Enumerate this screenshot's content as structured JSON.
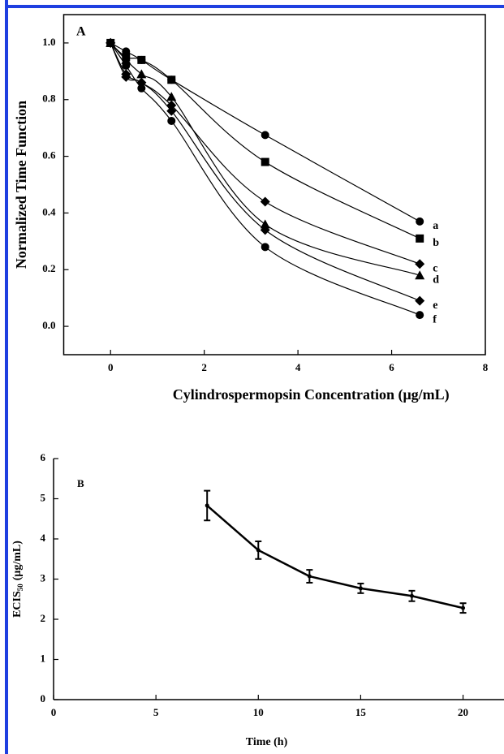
{
  "chart_data": [
    {
      "type": "scatter",
      "annotation": "A",
      "x_label": "Cylindrospermopsin Concentration (μg/mL)",
      "y_label": "Normalized Time Function",
      "x": [
        0,
        0.33,
        0.66,
        1.3,
        3.3,
        6.6
      ],
      "series": [
        {
          "name": "a",
          "color": "#000000",
          "marker": "circle",
          "values": [
            1.0,
            0.97,
            0.94,
            0.87,
            0.675,
            0.37
          ]
        },
        {
          "name": "b",
          "color": "#000000",
          "marker": "square",
          "values": [
            1.0,
            0.95,
            0.94,
            0.87,
            0.58,
            0.31
          ]
        },
        {
          "name": "c",
          "color": "#000000",
          "marker": "diamond",
          "values": [
            1.0,
            0.89,
            0.86,
            0.78,
            0.44,
            0.22
          ]
        },
        {
          "name": "d",
          "color": "#000000",
          "marker": "triangle",
          "values": [
            1.0,
            0.94,
            0.89,
            0.81,
            0.36,
            0.18
          ]
        },
        {
          "name": "e",
          "color": "#000000",
          "marker": "diamond",
          "values": [
            1.0,
            0.88,
            0.86,
            0.76,
            0.34,
            0.09
          ]
        },
        {
          "name": "f",
          "color": "#000000",
          "marker": "circle",
          "values": [
            1.0,
            0.92,
            0.84,
            0.725,
            0.28,
            0.04
          ]
        }
      ],
      "xlim": [
        -1,
        8
      ],
      "xticks": [
        0,
        2,
        4,
        6,
        8
      ],
      "ylim": [
        -0.1,
        1.1
      ],
      "yticks": [
        {
          "value": 0,
          "label": "0.0"
        },
        0.2,
        0.4,
        0.6,
        0.8,
        {
          "value": 1,
          "label": "1.0"
        }
      ]
    },
    {
      "type": "line",
      "annotation": "B",
      "x_label": "Time (h)",
      "y_label": "ECIS",
      "y_label_sub": "50",
      "y_label_unit": "(μg/mL)",
      "x": [
        7.5,
        10,
        12.5,
        15,
        17.5,
        20
      ],
      "series": [
        {
          "color": "#000000",
          "values": [
            4.83,
            3.72,
            3.07,
            2.77,
            2.58,
            2.28
          ],
          "errors": [
            0.37,
            0.22,
            0.16,
            0.12,
            0.13,
            0.12
          ]
        }
      ],
      "xlim": [
        0,
        22
      ],
      "xticks": [
        0,
        5,
        10,
        15,
        20
      ],
      "ylim": [
        0,
        6
      ],
      "yticks": [
        0,
        1,
        2,
        3,
        4,
        5,
        6
      ]
    }
  ]
}
